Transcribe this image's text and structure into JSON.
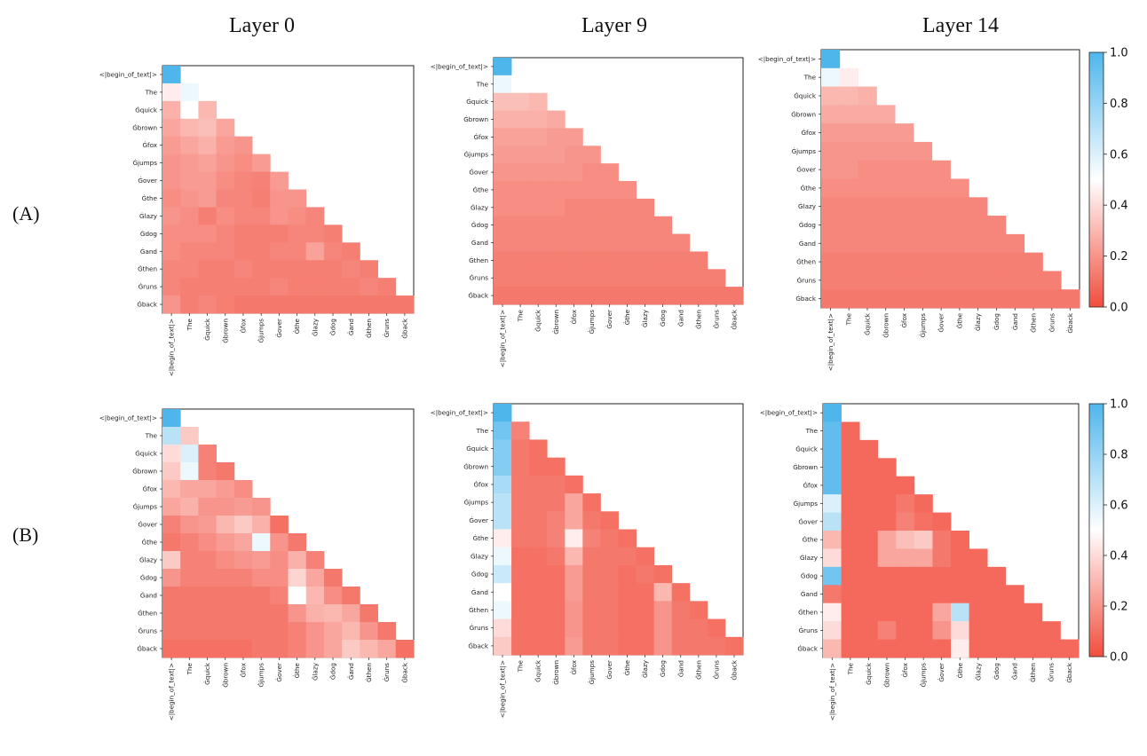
{
  "figure": {
    "layer_titles": [
      "Layer 0",
      "Layer 9",
      "Layer 14"
    ],
    "row_labels": [
      "(A)",
      "(B)"
    ]
  },
  "chart_data": {
    "type": "heatmap",
    "tokens": [
      "<|begin_of_text|>",
      "The",
      "Ġquick",
      "Ġbrown",
      "Ġfox",
      "Ġjumps",
      "Ġover",
      "Ġthe",
      "Ġlazy",
      "Ġdog",
      "Ġand",
      "Ġthen",
      "Ġruns",
      "Ġback"
    ],
    "colorbar": {
      "min": 0.0,
      "max": 1.0,
      "ticks": [
        "1.0",
        "0.8",
        "0.6",
        "0.4",
        "0.2",
        "0.0"
      ],
      "low_color": "#f24d3d",
      "mid_color": "#ffffff",
      "high_color": "#4fb6ec"
    },
    "panels": [
      {
        "row": "A",
        "layer": "Layer 0",
        "matrix": [
          [
            1.0
          ],
          [
            0.45,
            0.55
          ],
          [
            0.28,
            0.5,
            0.3
          ],
          [
            0.25,
            0.3,
            0.32,
            0.25
          ],
          [
            0.22,
            0.25,
            0.28,
            0.22,
            0.2
          ],
          [
            0.2,
            0.22,
            0.24,
            0.2,
            0.18,
            0.22
          ],
          [
            0.2,
            0.22,
            0.22,
            0.18,
            0.16,
            0.15,
            0.22
          ],
          [
            0.18,
            0.2,
            0.22,
            0.16,
            0.16,
            0.14,
            0.2,
            0.2
          ],
          [
            0.2,
            0.18,
            0.14,
            0.18,
            0.16,
            0.16,
            0.2,
            0.18,
            0.16
          ],
          [
            0.18,
            0.18,
            0.18,
            0.16,
            0.14,
            0.14,
            0.14,
            0.16,
            0.16,
            0.14
          ],
          [
            0.18,
            0.16,
            0.16,
            0.16,
            0.14,
            0.14,
            0.16,
            0.16,
            0.24,
            0.16,
            0.14
          ],
          [
            0.16,
            0.16,
            0.14,
            0.14,
            0.16,
            0.14,
            0.14,
            0.14,
            0.14,
            0.14,
            0.16,
            0.14
          ],
          [
            0.16,
            0.14,
            0.14,
            0.14,
            0.14,
            0.14,
            0.16,
            0.14,
            0.14,
            0.14,
            0.14,
            0.16,
            0.14
          ],
          [
            0.2,
            0.14,
            0.16,
            0.14,
            0.12,
            0.12,
            0.12,
            0.12,
            0.12,
            0.12,
            0.12,
            0.12,
            0.12,
            0.12
          ]
        ]
      },
      {
        "row": "A",
        "layer": "Layer 9",
        "matrix": [
          [
            1.0
          ],
          [
            0.55,
            0.5
          ],
          [
            0.32,
            0.32,
            0.3
          ],
          [
            0.28,
            0.28,
            0.28,
            0.26
          ],
          [
            0.24,
            0.24,
            0.24,
            0.22,
            0.22
          ],
          [
            0.22,
            0.22,
            0.22,
            0.22,
            0.2,
            0.2
          ],
          [
            0.2,
            0.2,
            0.2,
            0.2,
            0.2,
            0.18,
            0.18
          ],
          [
            0.18,
            0.18,
            0.18,
            0.18,
            0.18,
            0.18,
            0.18,
            0.18
          ],
          [
            0.18,
            0.18,
            0.18,
            0.18,
            0.16,
            0.16,
            0.16,
            0.16,
            0.16
          ],
          [
            0.16,
            0.16,
            0.16,
            0.16,
            0.16,
            0.16,
            0.16,
            0.16,
            0.16,
            0.16
          ],
          [
            0.16,
            0.16,
            0.16,
            0.16,
            0.16,
            0.16,
            0.16,
            0.16,
            0.16,
            0.16,
            0.16
          ],
          [
            0.14,
            0.14,
            0.14,
            0.14,
            0.14,
            0.14,
            0.14,
            0.14,
            0.14,
            0.14,
            0.14,
            0.14
          ],
          [
            0.14,
            0.14,
            0.14,
            0.14,
            0.14,
            0.14,
            0.14,
            0.14,
            0.14,
            0.14,
            0.14,
            0.14,
            0.14
          ],
          [
            0.12,
            0.12,
            0.12,
            0.12,
            0.12,
            0.12,
            0.12,
            0.12,
            0.12,
            0.12,
            0.12,
            0.12,
            0.12,
            0.12
          ]
        ]
      },
      {
        "row": "A",
        "layer": "Layer 14",
        "matrix": [
          [
            1.0
          ],
          [
            0.55,
            0.45
          ],
          [
            0.3,
            0.3,
            0.28
          ],
          [
            0.26,
            0.26,
            0.26,
            0.26
          ],
          [
            0.22,
            0.22,
            0.22,
            0.22,
            0.22
          ],
          [
            0.2,
            0.2,
            0.2,
            0.2,
            0.2,
            0.2
          ],
          [
            0.2,
            0.2,
            0.18,
            0.18,
            0.18,
            0.18,
            0.18
          ],
          [
            0.18,
            0.18,
            0.18,
            0.18,
            0.18,
            0.18,
            0.18,
            0.18
          ],
          [
            0.16,
            0.16,
            0.16,
            0.16,
            0.16,
            0.16,
            0.16,
            0.16,
            0.16
          ],
          [
            0.16,
            0.16,
            0.16,
            0.16,
            0.16,
            0.16,
            0.16,
            0.16,
            0.16,
            0.16
          ],
          [
            0.16,
            0.16,
            0.16,
            0.16,
            0.16,
            0.16,
            0.16,
            0.16,
            0.16,
            0.16,
            0.16
          ],
          [
            0.14,
            0.14,
            0.14,
            0.14,
            0.14,
            0.14,
            0.14,
            0.14,
            0.14,
            0.14,
            0.14,
            0.14
          ],
          [
            0.14,
            0.14,
            0.14,
            0.14,
            0.14,
            0.14,
            0.14,
            0.14,
            0.14,
            0.14,
            0.14,
            0.14,
            0.14
          ],
          [
            0.12,
            0.12,
            0.12,
            0.12,
            0.12,
            0.12,
            0.12,
            0.12,
            0.12,
            0.12,
            0.12,
            0.12,
            0.12,
            0.12
          ]
        ]
      },
      {
        "row": "B",
        "layer": "Layer 0",
        "matrix": [
          [
            1.0
          ],
          [
            0.7,
            0.35
          ],
          [
            0.4,
            0.6,
            0.15
          ],
          [
            0.35,
            0.55,
            0.15,
            0.12
          ],
          [
            0.3,
            0.25,
            0.25,
            0.22,
            0.18
          ],
          [
            0.25,
            0.28,
            0.2,
            0.2,
            0.22,
            0.2
          ],
          [
            0.15,
            0.2,
            0.22,
            0.3,
            0.35,
            0.28,
            0.1
          ],
          [
            0.12,
            0.15,
            0.18,
            0.22,
            0.25,
            0.55,
            0.2,
            0.12
          ],
          [
            0.35,
            0.15,
            0.15,
            0.18,
            0.2,
            0.22,
            0.18,
            0.28,
            0.15
          ],
          [
            0.2,
            0.15,
            0.15,
            0.15,
            0.15,
            0.18,
            0.18,
            0.38,
            0.25,
            0.12
          ],
          [
            0.12,
            0.12,
            0.12,
            0.12,
            0.12,
            0.12,
            0.15,
            0.5,
            0.3,
            0.18,
            0.12
          ],
          [
            0.12,
            0.12,
            0.12,
            0.12,
            0.12,
            0.12,
            0.12,
            0.2,
            0.28,
            0.3,
            0.25,
            0.12
          ],
          [
            0.12,
            0.12,
            0.12,
            0.12,
            0.12,
            0.12,
            0.12,
            0.15,
            0.2,
            0.25,
            0.3,
            0.2,
            0.12
          ],
          [
            0.1,
            0.1,
            0.1,
            0.1,
            0.1,
            0.12,
            0.12,
            0.15,
            0.2,
            0.25,
            0.35,
            0.3,
            0.25,
            0.1
          ]
        ]
      },
      {
        "row": "B",
        "layer": "Layer 9",
        "matrix": [
          [
            1.0
          ],
          [
            0.9,
            0.15
          ],
          [
            0.85,
            0.12,
            0.1
          ],
          [
            0.85,
            0.12,
            0.1,
            0.1
          ],
          [
            0.75,
            0.12,
            0.12,
            0.12,
            0.1
          ],
          [
            0.7,
            0.12,
            0.12,
            0.12,
            0.25,
            0.1
          ],
          [
            0.7,
            0.12,
            0.12,
            0.15,
            0.25,
            0.12,
            0.1
          ],
          [
            0.45,
            0.12,
            0.12,
            0.15,
            0.45,
            0.15,
            0.12,
            0.1
          ],
          [
            0.55,
            0.1,
            0.1,
            0.12,
            0.3,
            0.12,
            0.12,
            0.12,
            0.1
          ],
          [
            0.65,
            0.1,
            0.1,
            0.1,
            0.22,
            0.12,
            0.12,
            0.1,
            0.12,
            0.1
          ],
          [
            0.5,
            0.1,
            0.1,
            0.1,
            0.22,
            0.12,
            0.12,
            0.1,
            0.1,
            0.3,
            0.1
          ],
          [
            0.55,
            0.1,
            0.1,
            0.1,
            0.2,
            0.12,
            0.12,
            0.1,
            0.1,
            0.2,
            0.12,
            0.1
          ],
          [
            0.4,
            0.1,
            0.1,
            0.1,
            0.2,
            0.12,
            0.12,
            0.1,
            0.1,
            0.2,
            0.12,
            0.12,
            0.1
          ],
          [
            0.35,
            0.1,
            0.1,
            0.1,
            0.22,
            0.12,
            0.12,
            0.1,
            0.1,
            0.2,
            0.12,
            0.12,
            0.12,
            0.1
          ]
        ]
      },
      {
        "row": "B",
        "layer": "Layer 14",
        "matrix": [
          [
            1.0
          ],
          [
            0.95,
            0.08
          ],
          [
            0.95,
            0.08,
            0.08
          ],
          [
            0.95,
            0.08,
            0.08,
            0.08
          ],
          [
            0.95,
            0.08,
            0.08,
            0.08,
            0.08
          ],
          [
            0.6,
            0.08,
            0.08,
            0.08,
            0.12,
            0.08
          ],
          [
            0.7,
            0.08,
            0.08,
            0.08,
            0.15,
            0.1,
            0.08
          ],
          [
            0.3,
            0.08,
            0.08,
            0.25,
            0.32,
            0.35,
            0.12,
            0.08
          ],
          [
            0.4,
            0.08,
            0.08,
            0.25,
            0.25,
            0.25,
            0.12,
            0.08,
            0.08
          ],
          [
            0.9,
            0.08,
            0.08,
            0.08,
            0.08,
            0.08,
            0.08,
            0.08,
            0.08,
            0.08
          ],
          [
            0.12,
            0.08,
            0.08,
            0.08,
            0.08,
            0.08,
            0.08,
            0.08,
            0.08,
            0.08,
            0.08
          ],
          [
            0.45,
            0.08,
            0.08,
            0.08,
            0.08,
            0.08,
            0.25,
            0.7,
            0.08,
            0.08,
            0.08,
            0.08
          ],
          [
            0.4,
            0.08,
            0.08,
            0.15,
            0.08,
            0.08,
            0.2,
            0.4,
            0.08,
            0.08,
            0.08,
            0.08,
            0.08
          ],
          [
            0.3,
            0.08,
            0.08,
            0.08,
            0.08,
            0.08,
            0.08,
            0.45,
            0.08,
            0.08,
            0.08,
            0.08,
            0.08,
            0.08
          ]
        ]
      }
    ]
  }
}
